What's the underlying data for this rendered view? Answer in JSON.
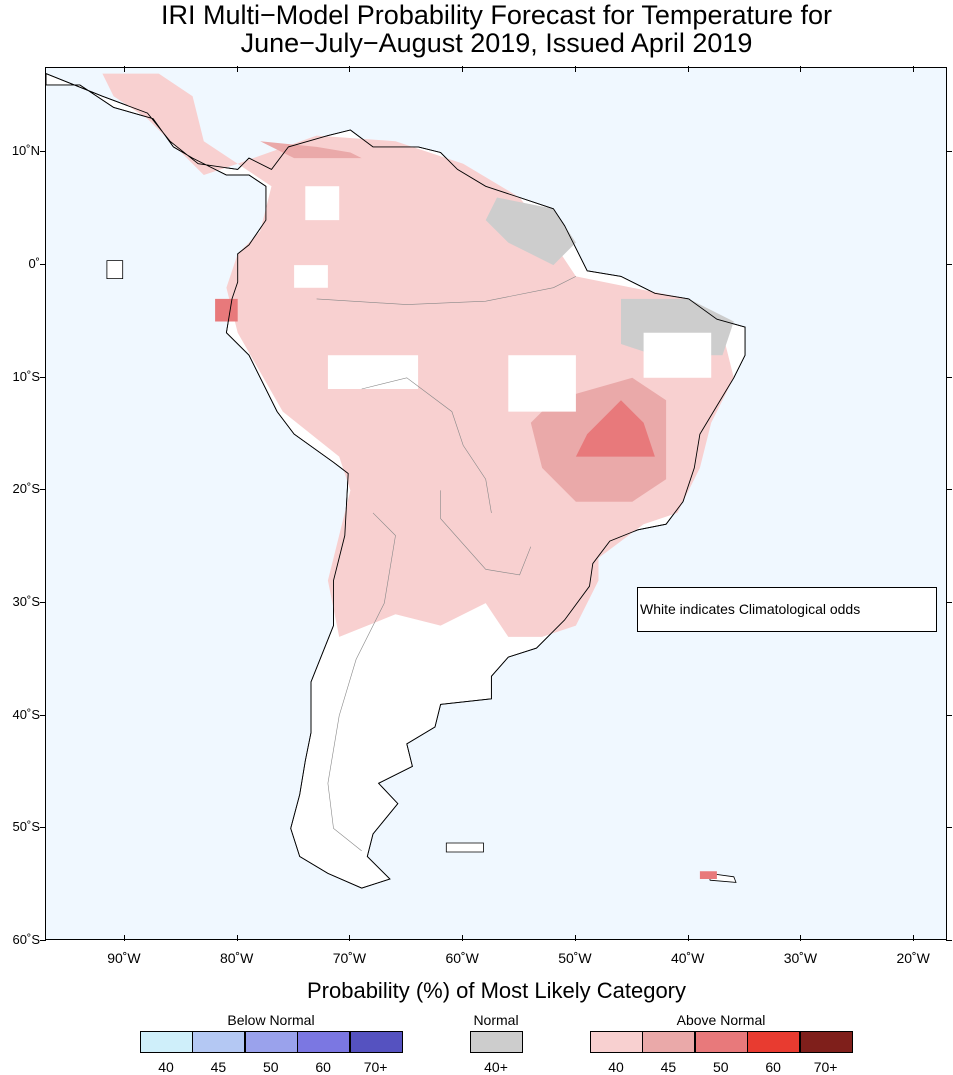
{
  "title": {
    "line1": "IRI Multi−Model Probability Forecast for Temperature for",
    "line2": "June−July−August 2019, Issued April 2019"
  },
  "map": {
    "lon_range": [
      -97,
      -17
    ],
    "lat_range": [
      -60,
      17.5
    ],
    "ocean_color": "#f0f8ff",
    "land_color": "#ffffff",
    "lat_ticks": [
      {
        "value": 10,
        "label": "10˚N"
      },
      {
        "value": 0,
        "label": "0˚"
      },
      {
        "value": -10,
        "label": "10˚S"
      },
      {
        "value": -20,
        "label": "20˚S"
      },
      {
        "value": -30,
        "label": "30˚S"
      },
      {
        "value": -40,
        "label": "40˚S"
      },
      {
        "value": -50,
        "label": "50˚S"
      },
      {
        "value": -60,
        "label": "60˚S"
      }
    ],
    "lon_ticks": [
      {
        "value": -90,
        "label": "90˚W"
      },
      {
        "value": -80,
        "label": "80˚W"
      },
      {
        "value": -70,
        "label": "70˚W"
      },
      {
        "value": -60,
        "label": "60˚W"
      },
      {
        "value": -50,
        "label": "50˚W"
      },
      {
        "value": -40,
        "label": "40˚W"
      },
      {
        "value": -30,
        "label": "30˚W"
      },
      {
        "value": -20,
        "label": "20˚W"
      }
    ],
    "forecast_regions": [
      {
        "category": "above_40",
        "points": [
          [
            -80,
            9
          ],
          [
            -73,
            11.5
          ],
          [
            -66,
            11
          ],
          [
            -60,
            9
          ],
          [
            -55,
            6
          ],
          [
            -52,
            2
          ],
          [
            -50,
            -1
          ],
          [
            -45,
            -2
          ],
          [
            -40,
            -3
          ],
          [
            -37,
            -6
          ],
          [
            -36,
            -10
          ],
          [
            -38,
            -14
          ],
          [
            -39,
            -18
          ],
          [
            -41,
            -22
          ],
          [
            -44,
            -23
          ],
          [
            -48,
            -26
          ],
          [
            -48,
            -28
          ],
          [
            -50,
            -32
          ],
          [
            -53,
            -33
          ],
          [
            -56,
            -33
          ],
          [
            -58,
            -30
          ],
          [
            -62,
            -32
          ],
          [
            -66,
            -31
          ],
          [
            -71,
            -33
          ],
          [
            -72,
            -28
          ],
          [
            -70,
            -20
          ],
          [
            -71,
            -17
          ],
          [
            -76,
            -13
          ],
          [
            -80,
            -6
          ],
          [
            -81,
            -2
          ],
          [
            -80,
            1
          ],
          [
            -78,
            3
          ],
          [
            -77,
            7
          ]
        ]
      },
      {
        "category": "above_40",
        "points": [
          [
            -92,
            17
          ],
          [
            -87,
            17
          ],
          [
            -84,
            15
          ],
          [
            -83,
            11
          ],
          [
            -80,
            9
          ],
          [
            -83,
            8
          ],
          [
            -86,
            11
          ],
          [
            -88,
            13
          ],
          [
            -91,
            15
          ]
        ]
      },
      {
        "category": "above_45",
        "points": [
          [
            -52,
            -12
          ],
          [
            -45,
            -10
          ],
          [
            -42,
            -12
          ],
          [
            -42,
            -19
          ],
          [
            -45,
            -21
          ],
          [
            -50,
            -21
          ],
          [
            -53,
            -18
          ],
          [
            -54,
            -14
          ]
        ]
      },
      {
        "category": "above_50",
        "points": [
          [
            -49,
            -15
          ],
          [
            -46,
            -12
          ],
          [
            -44,
            -14
          ],
          [
            -43,
            -17
          ],
          [
            -47,
            -17
          ],
          [
            -50,
            -17
          ]
        ]
      },
      {
        "category": "above_45",
        "points": [
          [
            -78,
            11
          ],
          [
            -73,
            10.5
          ],
          [
            -70,
            10
          ],
          [
            -69,
            9.5
          ],
          [
            -75,
            9.5
          ]
        ]
      },
      {
        "category": "above_50",
        "points": [
          [
            -82,
            -5
          ],
          [
            -80,
            -5
          ],
          [
            -80,
            -3
          ],
          [
            -82,
            -3
          ]
        ]
      },
      {
        "category": "above_50",
        "points": [
          [
            -39,
            -54.5
          ],
          [
            -37.5,
            -54.5
          ],
          [
            -37.5,
            -53.8
          ],
          [
            -39,
            -53.8
          ]
        ]
      },
      {
        "category": "normal_40",
        "points": [
          [
            -57,
            6
          ],
          [
            -52,
            5
          ],
          [
            -50,
            2
          ],
          [
            -52,
            0
          ],
          [
            -56,
            2
          ],
          [
            -58,
            4
          ]
        ]
      },
      {
        "category": "normal_40",
        "points": [
          [
            -46,
            -3
          ],
          [
            -40,
            -3
          ],
          [
            -36,
            -5
          ],
          [
            -37,
            -8
          ],
          [
            -43,
            -8
          ],
          [
            -46,
            -7
          ]
        ]
      }
    ],
    "climatology_regions": [
      {
        "points": [
          [
            -74,
            7
          ],
          [
            -71,
            7
          ],
          [
            -71,
            4
          ],
          [
            -74,
            4
          ]
        ]
      },
      {
        "points": [
          [
            -75,
            0
          ],
          [
            -72,
            0
          ],
          [
            -72,
            -2
          ],
          [
            -75,
            -2
          ]
        ]
      },
      {
        "points": [
          [
            -72,
            -8
          ],
          [
            -64,
            -8
          ],
          [
            -64,
            -11
          ],
          [
            -72,
            -11
          ]
        ]
      },
      {
        "points": [
          [
            -56,
            -8
          ],
          [
            -50,
            -8
          ],
          [
            -50,
            -13
          ],
          [
            -56,
            -13
          ]
        ]
      },
      {
        "points": [
          [
            -44,
            -6
          ],
          [
            -38,
            -6
          ],
          [
            -38,
            -10
          ],
          [
            -44,
            -10
          ]
        ]
      }
    ]
  },
  "note": "White indicates Climatological odds",
  "legend": {
    "title": "Probability (%) of Most Likely Category",
    "below": {
      "label": "Below Normal",
      "swatches": [
        {
          "label": "40",
          "color": "#cfeffa"
        },
        {
          "label": "45",
          "color": "#b4c8f3"
        },
        {
          "label": "50",
          "color": "#9aa2ec"
        },
        {
          "label": "60",
          "color": "#7b77e2"
        },
        {
          "label": "70+",
          "color": "#5552c0"
        }
      ]
    },
    "normal": {
      "label": "Normal",
      "swatches": [
        {
          "label": "40+",
          "color": "#cdcdcd"
        }
      ]
    },
    "above": {
      "label": "Above Normal",
      "swatches": [
        {
          "label": "40",
          "color": "#f8d0d0"
        },
        {
          "label": "45",
          "color": "#eaa9a9"
        },
        {
          "label": "50",
          "color": "#e8797b"
        },
        {
          "label": "60",
          "color": "#e83b30"
        },
        {
          "label": "70+",
          "color": "#7f1f1b"
        }
      ]
    }
  }
}
